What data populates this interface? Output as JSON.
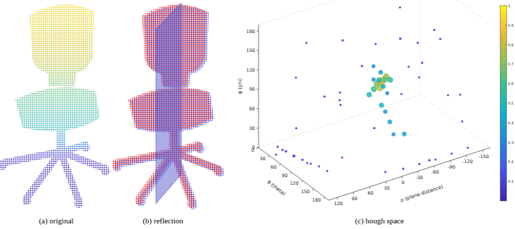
{
  "captions": [
    "(a) original",
    "(b) reflection",
    "(c) hough space"
  ],
  "chart_data": {
    "type": "scatter3d",
    "xlabel": "θ (theta)",
    "ylabel": "ρ (plane distance)",
    "zlabel": "ϕ (phi)",
    "xlim": [
      0,
      190
    ],
    "ylim": [
      135,
      -165
    ],
    "zlim": [
      0,
      190
    ],
    "xticks": [
      0,
      30,
      60,
      90,
      120,
      150,
      180
    ],
    "yticks": [
      120,
      90,
      60,
      30,
      0,
      -30,
      -60,
      -90,
      -120,
      -150
    ],
    "zticks": [
      0,
      30,
      60,
      90,
      120,
      150,
      180
    ],
    "x": [
      88,
      92,
      85,
      95,
      90,
      80,
      98,
      86,
      94,
      88,
      100,
      82,
      90,
      78,
      96,
      92,
      95,
      100,
      110,
      85,
      20,
      40,
      60,
      120,
      150,
      30,
      170,
      140,
      50,
      10,
      160,
      130,
      70,
      180,
      25,
      110,
      150,
      60,
      175,
      40,
      120,
      80,
      15,
      100,
      30,
      45,
      60,
      75,
      90,
      105,
      50,
      70,
      95,
      40,
      120,
      180,
      180,
      180,
      180,
      180,
      175,
      185,
      110
    ],
    "y": [
      -30,
      -28,
      -35,
      -25,
      -40,
      -30,
      -32,
      -20,
      -45,
      -10,
      -20,
      -40,
      -30,
      -25,
      -38,
      -30,
      -35,
      -40,
      -40,
      -20,
      60,
      -100,
      20,
      -120,
      -60,
      -140,
      -100,
      80,
      100,
      -50,
      30,
      -150,
      -80,
      -20,
      0,
      60,
      -140,
      -150,
      100,
      40,
      0,
      120,
      -120,
      -100,
      120,
      115,
      110,
      105,
      100,
      95,
      125,
      118,
      110,
      130,
      90,
      -10,
      -40,
      -70,
      -100,
      -130,
      20,
      -55,
      -60
    ],
    "z": [
      95,
      98,
      92,
      90,
      100,
      88,
      102,
      85,
      96,
      80,
      105,
      82,
      110,
      95,
      78,
      60,
      50,
      35,
      20,
      120,
      150,
      170,
      160,
      150,
      120,
      100,
      90,
      130,
      120,
      80,
      70,
      60,
      140,
      160,
      40,
      100,
      30,
      130,
      50,
      70,
      175,
      60,
      20,
      110,
      10,
      8,
      6,
      5,
      4,
      5,
      15,
      12,
      10,
      5,
      3,
      5,
      4,
      3,
      4,
      5,
      6,
      8,
      15
    ],
    "values": [
      0.95,
      0.9,
      0.85,
      0.8,
      0.75,
      0.7,
      0.65,
      0.6,
      0.55,
      0.5,
      0.5,
      0.45,
      0.4,
      0.35,
      0.3,
      0.45,
      0.35,
      0.4,
      0.3,
      0.3,
      0.05,
      0.05,
      0.08,
      0.06,
      0.05,
      0.07,
      0.05,
      0.06,
      0.05,
      0.08,
      0.1,
      0.05,
      0.12,
      0.05,
      0.06,
      0.07,
      0.05,
      0.06,
      0.05,
      0.1,
      0.05,
      0.06,
      0.05,
      0.09,
      0.08,
      0.1,
      0.12,
      0.1,
      0.08,
      0.07,
      0.06,
      0.09,
      0.07,
      0.05,
      0.06,
      0.06,
      0.08,
      0.07,
      0.06,
      0.05,
      0.07,
      0.1,
      0.4
    ],
    "colorbar": {
      "range": [
        0,
        1
      ],
      "ticks": [
        0.1,
        0.2,
        0.3,
        0.4,
        0.5,
        0.6,
        0.7,
        0.8,
        0.9,
        1
      ]
    }
  }
}
